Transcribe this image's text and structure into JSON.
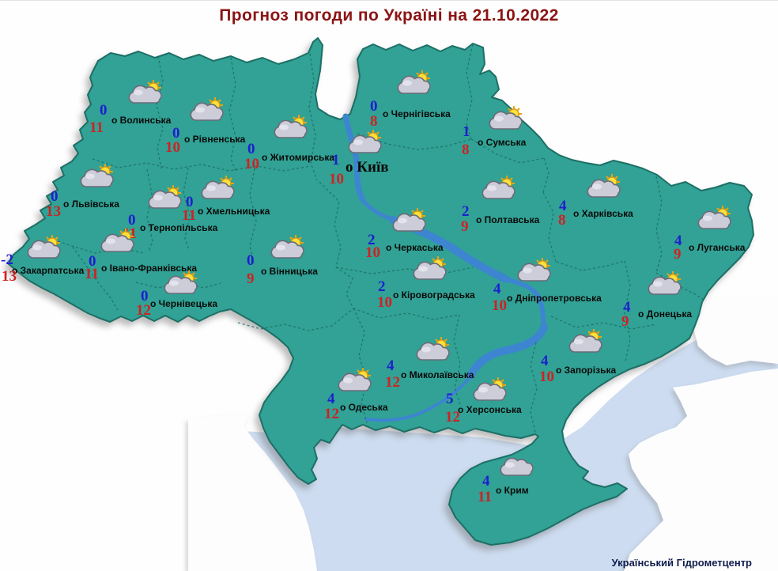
{
  "title": "Прогноз погоди по Україні на 21.10.2022",
  "date": "21.10.2022",
  "credit": "Український Гідрометцентр",
  "colors": {
    "land": "#31a295",
    "land_border": "#1d6f66",
    "sea": "#cddcf0",
    "river": "#3d85d1",
    "temp_low": "#1e1ecf",
    "temp_high": "#ce2222",
    "title": "#8b1414",
    "credit": "#0f1c4d"
  },
  "regions": [
    {
      "label": "о Волинська",
      "low": "0",
      "high": "11",
      "icon": "partly-cloudy",
      "pos": {
        "icon": [
          158,
          100
        ],
        "low": [
          126,
          129
        ],
        "label": [
          141,
          145
        ],
        "high": [
          113,
          151
        ]
      }
    },
    {
      "label": "о Рівненська",
      "low": "0",
      "high": "10",
      "icon": "partly-cloudy",
      "pos": {
        "icon": [
          236,
          122
        ],
        "low": [
          218,
          158
        ],
        "label": [
          233,
          169
        ],
        "high": [
          209,
          176
        ]
      }
    },
    {
      "label": "о Житомирська",
      "low": "0",
      "high": "10",
      "icon": "partly-cloudy",
      "pos": {
        "icon": [
          342,
          144
        ],
        "low": [
          313,
          178
        ],
        "label": [
          331,
          192
        ],
        "high": [
          309,
          197
        ]
      }
    },
    {
      "label": "о Чернігівська",
      "low": "0",
      "high": "8",
      "icon": "partly-cloudy",
      "pos": {
        "icon": [
          498,
          88
        ],
        "low": [
          468,
          124
        ],
        "label": [
          484,
          137
        ],
        "high": [
          468,
          143
        ]
      }
    },
    {
      "label": "о Київ",
      "low": "1",
      "high": "10",
      "icon": "partly-cloudy",
      "big": true,
      "pos": {
        "icon": [
          436,
          163
        ],
        "low": [
          420,
          192
        ],
        "label": [
          437,
          200
        ],
        "high": [
          416,
          216
        ]
      }
    },
    {
      "label": "о Сумська",
      "low": "1",
      "high": "8",
      "icon": "partly-cloudy",
      "pos": {
        "icon": [
          614,
          133
        ],
        "low": [
          585,
          156
        ],
        "label": [
          604,
          173
        ],
        "high": [
          584,
          179
        ]
      }
    },
    {
      "label": "о Львівська",
      "low": "0",
      "high": "13",
      "icon": "partly-cloudy",
      "pos": {
        "icon": [
          97,
          206
        ],
        "low": [
          64,
          238
        ],
        "label": [
          80,
          251
        ],
        "high": [
          58,
          257
        ]
      }
    },
    {
      "label": "о Тернопільська",
      "low": "0",
      "high": "11",
      "icon": "partly-cloudy",
      "pos": {
        "icon": [
          183,
          233
        ],
        "low": [
          162,
          268
        ],
        "label": [
          177,
          281
        ],
        "high": [
          155,
          285
        ]
      }
    },
    {
      "label": "о Хмельницька",
      "low": "0",
      "high": "11",
      "icon": "partly-cloudy",
      "pos": {
        "icon": [
          250,
          221
        ],
        "low": [
          235,
          245
        ],
        "label": [
          250,
          260
        ],
        "high": [
          230,
          262
        ]
      }
    },
    {
      "label": "о Івано-Франківська",
      "low": "0",
      "high": "11",
      "icon": "partly-cloudy",
      "pos": {
        "icon": [
          123,
          288
        ],
        "low": [
          112,
          320
        ],
        "label": [
          128,
          332
        ],
        "high": [
          107,
          336
        ]
      }
    },
    {
      "label": "о Закарпатська",
      "low": "-2",
      "high": "13",
      "icon": "partly-cloudy",
      "pos": {
        "icon": [
          30,
          296
        ],
        "low": [
          1,
          318
        ],
        "label": [
          15,
          335
        ],
        "high": [
          2,
          339
        ]
      }
    },
    {
      "label": "о Чернівецька",
      "low": "0",
      "high": "12",
      "icon": "partly-cloudy",
      "pos": {
        "icon": [
          203,
          341
        ],
        "low": [
          178,
          364
        ],
        "label": [
          190,
          377
        ],
        "high": [
          172,
          382
        ]
      }
    },
    {
      "label": "о Вінницька",
      "low": "0",
      "high": "9",
      "icon": "partly-cloudy",
      "pos": {
        "icon": [
          338,
          296
        ],
        "low": [
          312,
          319
        ],
        "label": [
          330,
          336
        ],
        "high": [
          312,
          342
        ]
      }
    },
    {
      "label": "о Черкаська",
      "low": "2",
      "high": "10",
      "icon": "partly-cloudy",
      "pos": {
        "icon": [
          492,
          262
        ],
        "low": [
          465,
          293
        ],
        "label": [
          488,
          306
        ],
        "high": [
          462,
          309
        ]
      }
    },
    {
      "label": "о Полтавська",
      "low": "2",
      "high": "9",
      "icon": "partly-cloudy",
      "pos": {
        "icon": [
          605,
          221
        ],
        "low": [
          584,
          257
        ],
        "label": [
          602,
          271
        ],
        "high": [
          583,
          276
        ]
      }
    },
    {
      "label": "о Кіровоградська",
      "low": "2",
      "high": "10",
      "icon": "partly-cloudy",
      "pos": {
        "icon": [
          518,
          323
        ],
        "low": [
          478,
          352
        ],
        "label": [
          497,
          366
        ],
        "high": [
          477,
          372
        ]
      }
    },
    {
      "label": "о Дніпропетровська",
      "low": "4",
      "high": "10",
      "icon": "partly-cloudy",
      "pos": {
        "icon": [
          650,
          325
        ],
        "low": [
          624,
          355
        ],
        "label": [
          641,
          370
        ],
        "high": [
          622,
          376
        ]
      }
    },
    {
      "label": "о Харківська",
      "low": "4",
      "high": "8",
      "icon": "partly-cloudy",
      "pos": {
        "icon": [
          738,
          219
        ],
        "low": [
          707,
          250
        ],
        "label": [
          725,
          263
        ],
        "high": [
          706,
          268
        ]
      }
    },
    {
      "label": "о Луганська",
      "low": "4",
      "high": "9",
      "icon": "partly-cloudy",
      "pos": {
        "icon": [
          878,
          259
        ],
        "low": [
          853,
          294
        ],
        "label": [
          871,
          306
        ],
        "high": [
          852,
          311
        ]
      }
    },
    {
      "label": "о Донецька",
      "low": "4",
      "high": "9",
      "icon": "partly-cloudy",
      "pos": {
        "icon": [
          815,
          342
        ],
        "low": [
          788,
          378
        ],
        "label": [
          807,
          390
        ],
        "high": [
          786,
          396
        ]
      }
    },
    {
      "label": "о Запорізька",
      "low": "4",
      "high": "10",
      "icon": "partly-cloudy",
      "pos": {
        "icon": [
          715,
          415
        ],
        "low": [
          684,
          446
        ],
        "label": [
          703,
          461
        ],
        "high": [
          682,
          466
        ]
      }
    },
    {
      "label": "о Миколаївська",
      "low": "4",
      "high": "12",
      "icon": "partly-cloudy",
      "pos": {
        "icon": [
          522,
          425
        ],
        "low": [
          489,
          452
        ],
        "label": [
          507,
          467
        ],
        "high": [
          487,
          473
        ]
      }
    },
    {
      "label": "о Одеська",
      "low": "4",
      "high": "12",
      "icon": "partly-cloudy",
      "pos": {
        "icon": [
          423,
          464
        ],
        "low": [
          414,
          494
        ],
        "label": [
          430,
          508
        ],
        "high": [
          410,
          513
        ]
      }
    },
    {
      "label": "о Херсонська",
      "low": "5",
      "high": "12",
      "icon": "partly-cloudy",
      "pos": {
        "icon": [
          594,
          476
        ],
        "low": [
          564,
          494
        ],
        "label": [
          579,
          511
        ],
        "high": [
          563,
          517
        ]
      }
    },
    {
      "label": "о Крим",
      "low": "4",
      "high": "11",
      "icon": "cloudy",
      "pos": {
        "icon": [
          628,
          571
        ],
        "low": [
          610,
          598
        ],
        "label": [
          627,
          613
        ],
        "high": [
          604,
          618
        ]
      }
    }
  ]
}
